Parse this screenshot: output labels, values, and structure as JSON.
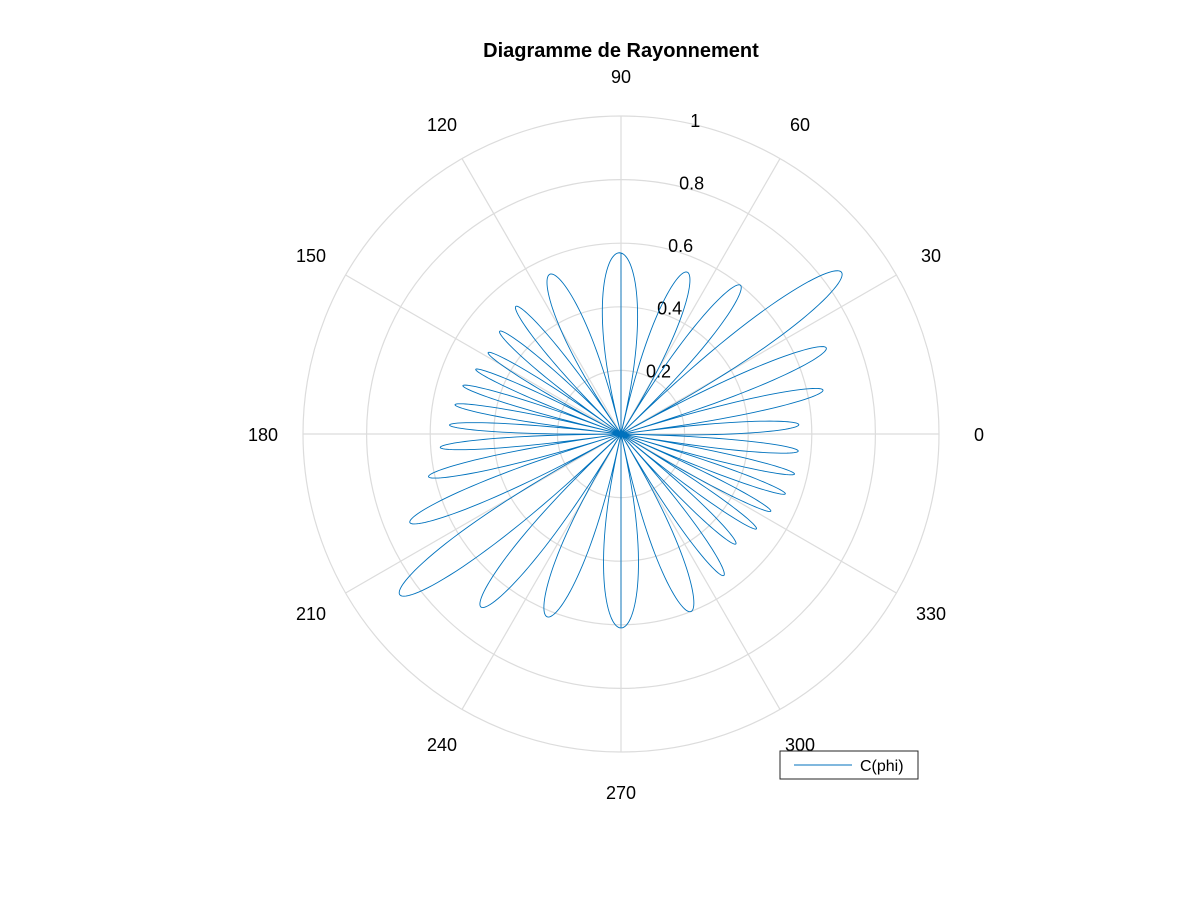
{
  "colors": {
    "background": "#ffffff",
    "grid": "#dcdcdc",
    "series": "#0072bd",
    "legend_border": "#262626"
  },
  "chart_data": {
    "type": "line",
    "coordinate_system": "polar",
    "title": "Diagramme de Rayonnement",
    "theta_unit": "degrees",
    "theta_ticks": [
      "0",
      "30",
      "60",
      "90",
      "120",
      "150",
      "180",
      "210",
      "240",
      "270",
      "300",
      "330"
    ],
    "r_ticks": [
      "0.2",
      "0.4",
      "0.6",
      "0.8",
      "1"
    ],
    "r_lim": [
      0,
      1
    ],
    "grid": true,
    "legend": {
      "position": "bottom-right",
      "entries": [
        "C(phi)"
      ]
    },
    "series": [
      {
        "name": "C(phi)",
        "main_lobe_peak": {
          "theta": 35,
          "r": 0.86
        },
        "lobes": [
          {
            "theta": 3,
            "r": 0.56
          },
          {
            "theta": 12,
            "r": 0.65
          },
          {
            "theta": 22,
            "r": 0.7
          },
          {
            "theta": 35,
            "r": 0.86
          },
          {
            "theta": 53,
            "r": 0.6
          },
          {
            "theta": 64,
            "r": 0.55
          },
          {
            "theta": 90,
            "r": 0.57
          },
          {
            "theta": 118,
            "r": 0.55
          },
          {
            "theta": 130,
            "r": 0.52
          },
          {
            "theta": 140,
            "r": 0.5
          },
          {
            "theta": 149,
            "r": 0.49
          },
          {
            "theta": 156,
            "r": 0.5
          },
          {
            "theta": 163,
            "r": 0.52
          },
          {
            "theta": 170,
            "r": 0.53
          },
          {
            "theta": 177,
            "r": 0.54
          },
          {
            "theta": 184,
            "r": 0.57
          },
          {
            "theta": 192,
            "r": 0.62
          },
          {
            "theta": 202,
            "r": 0.72
          },
          {
            "theta": 215,
            "r": 0.86
          },
          {
            "theta": 232,
            "r": 0.7
          },
          {
            "theta": 245,
            "r": 0.62
          },
          {
            "theta": 270,
            "r": 0.61
          },
          {
            "theta": 295,
            "r": 0.6
          },
          {
            "theta": 306,
            "r": 0.55
          },
          {
            "theta": 317,
            "r": 0.5
          },
          {
            "theta": 325,
            "r": 0.52
          },
          {
            "theta": 333,
            "r": 0.53
          },
          {
            "theta": 340,
            "r": 0.55
          },
          {
            "theta": 347,
            "r": 0.56
          },
          {
            "theta": 354,
            "r": 0.56
          }
        ]
      }
    ]
  }
}
